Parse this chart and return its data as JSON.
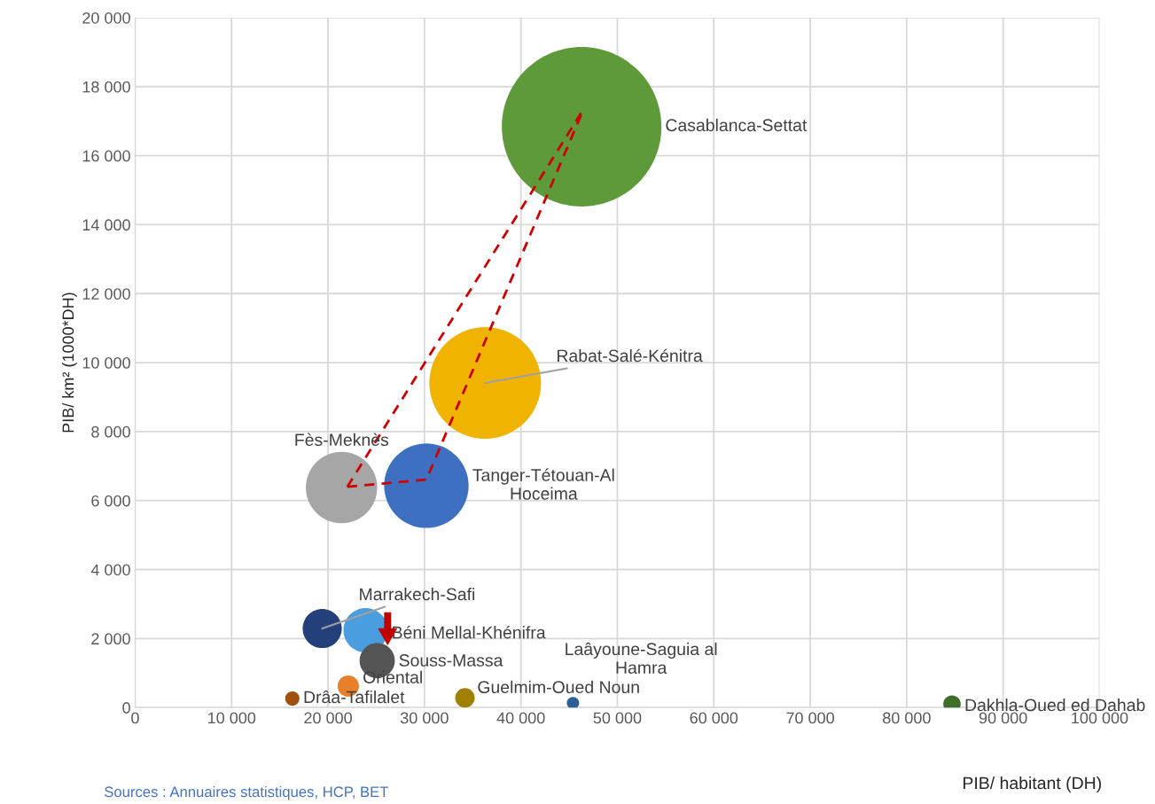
{
  "chart_data": {
    "type": "bubble",
    "xlabel": "PIB/ habitant (DH)",
    "ylabel": "PIB/ km² (1000*DH)",
    "annotations": [
      "Sources : Annuaires statistiques, HCP, BET"
    ],
    "xlim": [
      0,
      100000
    ],
    "xticks": [
      0,
      {
        "value": 10000,
        "label": "10 000"
      },
      {
        "value": 20000,
        "label": "20 000"
      },
      {
        "value": 30000,
        "label": "30 000"
      },
      {
        "value": 40000,
        "label": "40 000"
      },
      {
        "value": 50000,
        "label": "50 000"
      },
      {
        "value": 60000,
        "label": "60 000"
      },
      {
        "value": 70000,
        "label": "70 000"
      },
      {
        "value": 80000,
        "label": "80 000"
      },
      {
        "value": 90000,
        "label": "90 000"
      },
      {
        "value": 100000,
        "label": "100 000"
      }
    ],
    "ylim": [
      0,
      20000
    ],
    "yticks": [
      0,
      {
        "value": 2000,
        "label": "2 000"
      },
      {
        "value": 4000,
        "label": "4 000"
      },
      {
        "value": 6000,
        "label": "6 000"
      },
      {
        "value": 8000,
        "label": "8 000"
      },
      {
        "value": 10000,
        "label": "10 000"
      },
      {
        "value": 12000,
        "label": "12 000"
      },
      {
        "value": 14000,
        "label": "14 000"
      },
      {
        "value": 16000,
        "label": "16 000"
      },
      {
        "value": 18000,
        "label": "18 000"
      },
      {
        "value": 20000,
        "label": "20 000"
      }
    ],
    "grid": true,
    "legend": false,
    "series": [
      {
        "name": "Casablanca-Settat",
        "color": "#5e9a3a",
        "x": [
          46300
        ],
        "values": [
          16840
        ],
        "sizes": [
          1
        ]
      },
      {
        "name": "Rabat-Salé-Kénitra",
        "color": "#f0b400",
        "x": [
          36300
        ],
        "values": [
          9410
        ],
        "sizes": [
          0.49
        ]
      },
      {
        "name": "Tanger-Tétouan-Al\nHoceima",
        "color": "#3e6fc0",
        "x": [
          30200
        ],
        "values": [
          6430
        ],
        "sizes": [
          0.28
        ]
      },
      {
        "name": "Fès-Meknès",
        "color": "#a6a6a6",
        "x": [
          21400
        ],
        "values": [
          6380
        ],
        "sizes": [
          0.2
        ]
      },
      {
        "name": "Marrakech-Safi",
        "color": "#23407a",
        "x": [
          19400
        ],
        "values": [
          2290
        ],
        "sizes": [
          0.06
        ]
      },
      {
        "name": "Béni Mellal-Khénifra",
        "color": "#4a9ee0",
        "x": [
          23900
        ],
        "values": [
          2240
        ],
        "sizes": [
          0.077
        ]
      },
      {
        "name": "Souss-Massa",
        "color": "#555555",
        "x": [
          25100
        ],
        "values": [
          1360
        ],
        "sizes": [
          0.049
        ]
      },
      {
        "name": "Oriental",
        "color": "#e87f2b",
        "x": [
          22100
        ],
        "values": [
          620
        ],
        "sizes": [
          0.018
        ]
      },
      {
        "name": "Drâa-Tafilalet",
        "color": "#a0500f",
        "x": [
          16300
        ],
        "values": [
          260
        ],
        "sizes": [
          0.008
        ]
      },
      {
        "name": "Guelmim-Oued Noun",
        "color": "#a08000",
        "x": [
          34200
        ],
        "values": [
          280
        ],
        "sizes": [
          0.015
        ]
      },
      {
        "name": "Laâyoune-Saguia al\nHamra",
        "color": "#2e6096",
        "x": [
          45400
        ],
        "values": [
          130
        ],
        "sizes": [
          0.006
        ]
      },
      {
        "name": "Dakhla-Oued ed Dahab",
        "color": "#3f6d2a",
        "x": [
          84700
        ],
        "values": [
          100
        ],
        "sizes": [
          0.012
        ]
      },
      {
        "type": "line",
        "color": "#cc0000",
        "line_style": "dashed",
        "x": [
          22000,
          46500
        ],
        "values": [
          6400,
          17350
        ]
      },
      {
        "type": "line",
        "color": "#cc0000",
        "line_style": "dashed",
        "x": [
          22000,
          30200,
          46500
        ],
        "values": [
          6400,
          6610,
          17350
        ]
      }
    ]
  }
}
